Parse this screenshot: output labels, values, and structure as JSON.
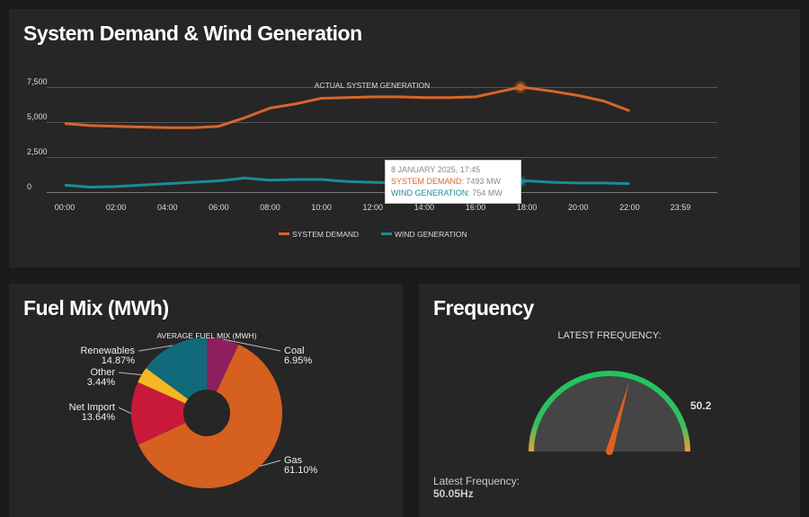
{
  "demand_panel": {
    "title": "System Demand & Wind Generation"
  },
  "chart_data": [
    {
      "type": "line",
      "title": "ACTUAL SYSTEM GENERATION",
      "ylim": [
        0,
        7500
      ],
      "yticks": [
        "0",
        "2,500",
        "5,000",
        "7,500"
      ],
      "xticks": [
        "00:00",
        "02:00",
        "04:00",
        "06:00",
        "08:00",
        "10:00",
        "12:00",
        "14:00",
        "16:00",
        "18:00",
        "20:00",
        "22:00",
        "23:59"
      ],
      "grid": true,
      "legend_position": "bottom",
      "x": [
        "00:00",
        "01:00",
        "02:00",
        "03:00",
        "04:00",
        "05:00",
        "06:00",
        "07:00",
        "08:00",
        "09:00",
        "10:00",
        "11:00",
        "12:00",
        "13:00",
        "14:00",
        "15:00",
        "16:00",
        "17:00",
        "17:45",
        "18:00",
        "19:00",
        "20:00",
        "21:00",
        "22:00"
      ],
      "series": [
        {
          "name": "SYSTEM DEMAND",
          "color": "#d9652a",
          "values": [
            4900,
            4750,
            4700,
            4650,
            4600,
            4600,
            4700,
            5300,
            6000,
            6300,
            6700,
            6750,
            6800,
            6800,
            6750,
            6750,
            6800,
            7200,
            7493,
            7450,
            7200,
            6900,
            6500,
            5800
          ]
        },
        {
          "name": "WIND GENERATION",
          "color": "#1a8c96",
          "values": [
            500,
            350,
            400,
            500,
            600,
            700,
            800,
            1000,
            850,
            900,
            900,
            750,
            700,
            650,
            600,
            650,
            700,
            720,
            754,
            800,
            700,
            650,
            650,
            600
          ]
        }
      ],
      "tooltip": {
        "date": "8 JANUARY 2025, 17:45",
        "demand_label": "SYSTEM DEMAND",
        "demand_value": "7493 MW",
        "wind_label": "WIND GENERATION",
        "wind_value": "754 MW"
      }
    },
    {
      "type": "pie",
      "title": "AVERAGE FUEL MIX (MWH)",
      "categories": [
        "Coal",
        "Gas",
        "Net Import",
        "Other",
        "Renewables"
      ],
      "values": [
        6.95,
        61.1,
        13.64,
        3.44,
        14.87
      ],
      "labels": [
        "6.95%",
        "61.10%",
        "13.64%",
        "3.44%",
        "14.87%"
      ],
      "colors": [
        "#8e1f5e",
        "#d5601f",
        "#c8193a",
        "#f5b623",
        "#106a7a"
      ]
    }
  ],
  "fuel_panel": {
    "title": "Fuel Mix (MWh)"
  },
  "frequency_panel": {
    "title": "Frequency",
    "gauge_title": "LATEST FREQUENCY:",
    "max_label": "50.2",
    "value": 50.05,
    "range": [
      49.8,
      50.2
    ],
    "latest_label": "Latest Frequency:",
    "latest_value": "50.05Hz"
  }
}
